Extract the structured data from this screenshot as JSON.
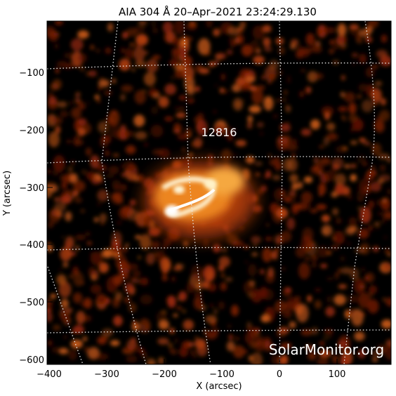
{
  "figure": {
    "title": "AIA 304 Å 20–Apr–2021 23:24:29.130",
    "ar_label": "12816",
    "watermark": "SolarMonitor.org",
    "xlabel": "X (arcsec)",
    "ylabel": "Y (arcsec)",
    "x_ticks": [
      "−400",
      "−300",
      "−200",
      "−100",
      "0",
      "100"
    ],
    "y_ticks": [
      "−100",
      "−200",
      "−300",
      "−400",
      "−500",
      "−600"
    ]
  },
  "colors": {
    "background": "#000000",
    "flare_core": "#fff6d8",
    "flare_glow": "#f08a20",
    "plage": "#8a2108",
    "grid": "#e8e8e8"
  }
}
